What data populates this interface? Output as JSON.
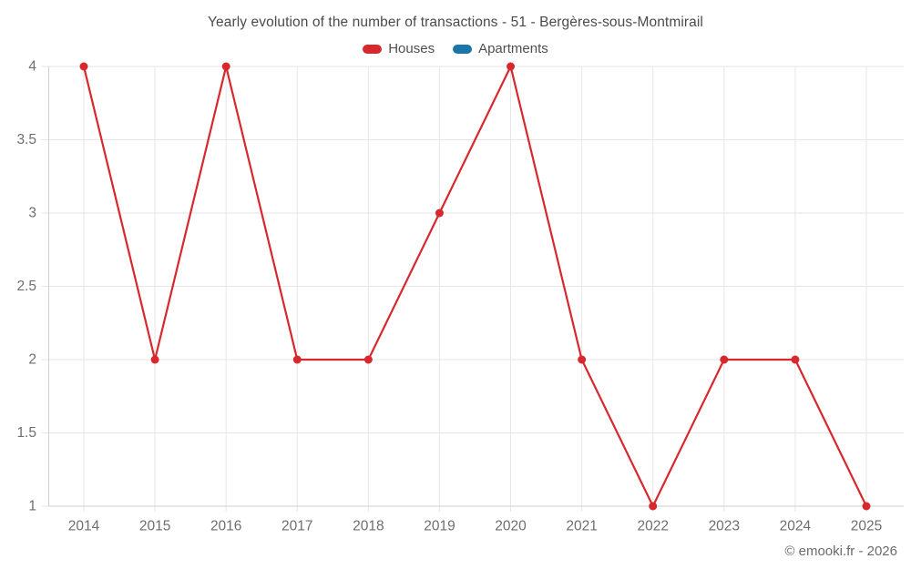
{
  "title": "Yearly evolution of the number of transactions - 51 - Bergères-sous-Montmirail",
  "watermark": "© emooki.fr - 2026",
  "colors": {
    "houses": "#d7282d",
    "apartments": "#1a75a8",
    "grid": "#e6e6e6",
    "axis": "#cfcfcf",
    "tick_text": "#6e6e6e",
    "title_text": "#4b4b4b",
    "background": "#ffffff"
  },
  "legend": [
    {
      "label": "Houses",
      "color": "#d7282d"
    },
    {
      "label": "Apartments",
      "color": "#1a75a8"
    }
  ],
  "chart_data": {
    "type": "line",
    "title": "Yearly evolution of the number of transactions - 51 - Bergères-sous-Montmirail",
    "x": [
      2014,
      2015,
      2016,
      2017,
      2018,
      2019,
      2020,
      2021,
      2022,
      2023,
      2024,
      2025
    ],
    "series": [
      {
        "name": "Houses",
        "color": "#d7282d",
        "values": [
          4,
          2,
          4,
          2,
          2,
          3,
          4,
          2,
          1,
          2,
          2,
          1
        ]
      },
      {
        "name": "Apartments",
        "color": "#1a75a8",
        "values": []
      }
    ],
    "xlabel": "",
    "ylabel": "",
    "ylim": [
      1,
      4
    ],
    "yticks": [
      1,
      1.5,
      2,
      2.5,
      3,
      3.5,
      4
    ],
    "grid": true,
    "legend_position": "top"
  }
}
